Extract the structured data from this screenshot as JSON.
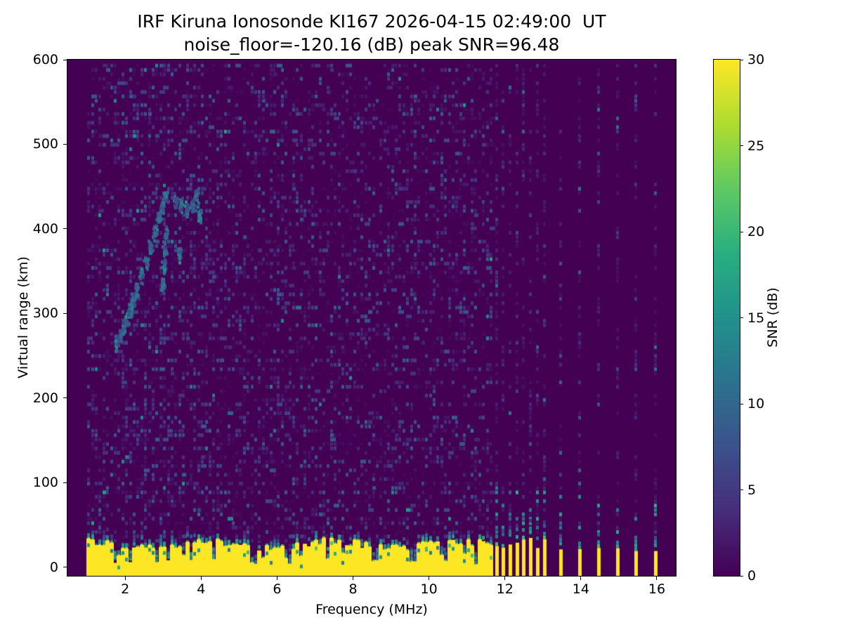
{
  "figure": {
    "title_line1": "IRF Kiruna Ionosonde KI167 2026-04-15 02:49:00  UT",
    "title_line2": "noise_floor=-120.16 (dB) peak SNR=96.48"
  },
  "chart_data": {
    "type": "heatmap",
    "title": "IRF Kiruna Ionosonde KI167 2026-04-15 02:49:00  UT",
    "subtitle": "noise_floor=-120.16 (dB) peak SNR=96.48",
    "xlabel": "Frequency (MHz)",
    "ylabel": "Virtual range (km)",
    "xlim": [
      0.48,
      16.5
    ],
    "ylim": [
      -10,
      600
    ],
    "xticks": [
      2,
      4,
      6,
      8,
      10,
      12,
      14,
      16
    ],
    "yticks": [
      0,
      100,
      200,
      300,
      400,
      500,
      600
    ],
    "grid": false,
    "legend": "none",
    "colorbar": {
      "label": "SNR (dB)",
      "min": 0,
      "max": 30,
      "ticks": [
        0,
        5,
        10,
        15,
        20,
        25,
        30
      ],
      "position": "right"
    },
    "colormap_stops": [
      [
        0.0,
        "#440154"
      ],
      [
        0.125,
        "#472d7b"
      ],
      [
        0.25,
        "#3b528b"
      ],
      [
        0.375,
        "#2c728e"
      ],
      [
        0.5,
        "#21918c"
      ],
      [
        0.625,
        "#28ae80"
      ],
      [
        0.75,
        "#5ec962"
      ],
      [
        0.875,
        "#addc30"
      ],
      [
        1.0,
        "#fde725"
      ]
    ],
    "sweep": {
      "continuous_band": {
        "f_start": 1.0,
        "f_end": 11.62,
        "f_step": 0.1
      },
      "stepped_frequencies_mhz": [
        11.78,
        11.96,
        12.14,
        12.32,
        12.5,
        12.68,
        12.86,
        13.04,
        13.47,
        13.97,
        14.47,
        14.97,
        15.46,
        15.96
      ],
      "stripe_width_mhz": 0.085,
      "range_step_km": 5.2
    },
    "ground_echo": {
      "snr_db": 30,
      "top_km_base": 27,
      "top_km_variation": 9,
      "transition_km": 18,
      "absorption_dips_mhz": [
        1.68,
        2.08,
        2.78,
        3.12,
        3.68,
        4.32,
        5.35,
        6.28,
        7.32,
        8.55,
        9.55,
        10.38,
        11.18
      ]
    },
    "echo_trace": {
      "snr_db_range": [
        8,
        17
      ],
      "points_f_mhz_km": [
        [
          1.75,
          266
        ],
        [
          1.84,
          275
        ],
        [
          1.93,
          286
        ],
        [
          2.02,
          296
        ],
        [
          2.1,
          306
        ],
        [
          2.18,
          316
        ],
        [
          2.28,
          330
        ],
        [
          2.4,
          346
        ],
        [
          2.52,
          362
        ],
        [
          2.64,
          380
        ],
        [
          2.76,
          398
        ],
        [
          2.87,
          414
        ],
        [
          2.96,
          428
        ],
        [
          3.03,
          441
        ],
        [
          2.97,
          336
        ],
        [
          3.0,
          358
        ],
        [
          3.02,
          378
        ],
        [
          3.05,
          398
        ],
        [
          3.3,
          434
        ],
        [
          3.45,
          428
        ],
        [
          3.6,
          424
        ],
        [
          3.75,
          430
        ],
        [
          3.85,
          442
        ],
        [
          3.93,
          418
        ],
        [
          3.4,
          372
        ]
      ]
    },
    "noise": {
      "seed": 7,
      "max_db": 9,
      "density_low_freq": 0.5,
      "density_mid_freq": 0.43,
      "density_high_freq": 0.4,
      "stripe_column_density": 0.32
    }
  }
}
